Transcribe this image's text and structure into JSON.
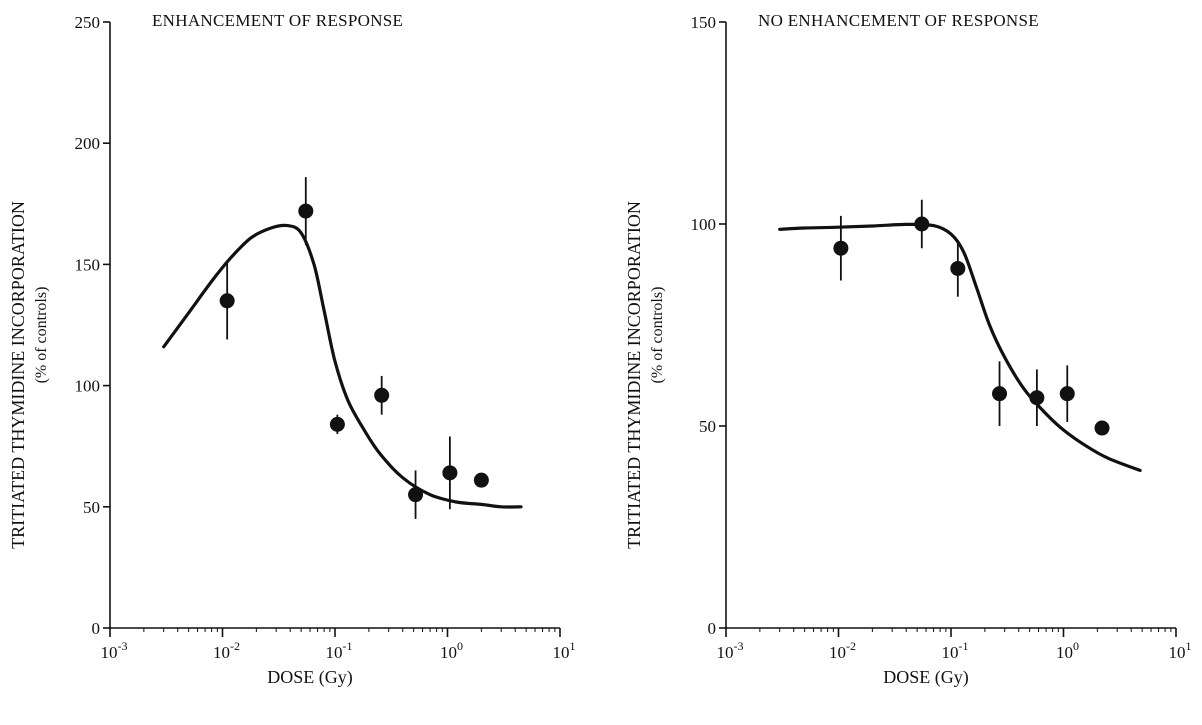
{
  "chart_data": [
    {
      "type": "scatter",
      "title": "ENHANCEMENT OF RESPONSE",
      "xlabel": "DOSE (Gy)",
      "ylabel": "TRITIATED THYMIDINE INCORPORATION",
      "ylabel_sub": "(% of controls)",
      "xscale": "log",
      "xlim": [
        0.001,
        10
      ],
      "ylim": [
        0,
        250
      ],
      "xticks": [
        {
          "base": "10",
          "exp": "-3",
          "value": 0.001
        },
        {
          "base": "10",
          "exp": "-2",
          "value": 0.01
        },
        {
          "base": "10",
          "exp": "-1",
          "value": 0.1
        },
        {
          "base": "10",
          "exp": "0",
          "value": 1
        },
        {
          "base": "10",
          "exp": "1",
          "value": 10
        }
      ],
      "yticks": [
        0,
        50,
        100,
        150,
        200,
        250
      ],
      "grid": false,
      "points": [
        {
          "x": 0.011,
          "y": 135,
          "err": 16
        },
        {
          "x": 0.055,
          "y": 172,
          "err": 14
        },
        {
          "x": 0.105,
          "y": 84,
          "err": 4
        },
        {
          "x": 0.26,
          "y": 96,
          "err": 8
        },
        {
          "x": 0.52,
          "y": 55,
          "err": 10
        },
        {
          "x": 1.05,
          "y": 64,
          "err": 15
        },
        {
          "x": 2.0,
          "y": 61,
          "err": 0
        }
      ],
      "curve": [
        {
          "x": 0.003,
          "y": 116
        },
        {
          "x": 0.005,
          "y": 130
        },
        {
          "x": 0.008,
          "y": 143
        },
        {
          "x": 0.012,
          "y": 153
        },
        {
          "x": 0.018,
          "y": 161
        },
        {
          "x": 0.027,
          "y": 165
        },
        {
          "x": 0.038,
          "y": 166
        },
        {
          "x": 0.05,
          "y": 163
        },
        {
          "x": 0.065,
          "y": 150
        },
        {
          "x": 0.08,
          "y": 131
        },
        {
          "x": 0.1,
          "y": 110
        },
        {
          "x": 0.13,
          "y": 94
        },
        {
          "x": 0.18,
          "y": 82
        },
        {
          "x": 0.25,
          "y": 72
        },
        {
          "x": 0.4,
          "y": 62
        },
        {
          "x": 0.7,
          "y": 55
        },
        {
          "x": 1.2,
          "y": 52
        },
        {
          "x": 2.0,
          "y": 51
        },
        {
          "x": 3.0,
          "y": 50
        },
        {
          "x": 4.5,
          "y": 50
        }
      ]
    },
    {
      "type": "scatter",
      "title": "NO ENHANCEMENT OF RESPONSE",
      "xlabel": "DOSE (Gy)",
      "ylabel": "TRITIATED THYMIDINE INCORPORATION",
      "ylabel_sub": "(% of controls)",
      "xscale": "log",
      "xlim": [
        0.001,
        10
      ],
      "ylim": [
        0,
        150
      ],
      "xticks": [
        {
          "base": "10",
          "exp": "-3",
          "value": 0.001
        },
        {
          "base": "10",
          "exp": "-2",
          "value": 0.01
        },
        {
          "base": "10",
          "exp": "-1",
          "value": 0.1
        },
        {
          "base": "10",
          "exp": "0",
          "value": 1
        },
        {
          "base": "10",
          "exp": "1",
          "value": 10
        }
      ],
      "yticks": [
        0,
        50,
        100,
        150
      ],
      "grid": false,
      "points": [
        {
          "x": 0.0105,
          "y": 94,
          "err": 8
        },
        {
          "x": 0.055,
          "y": 100,
          "err": 6
        },
        {
          "x": 0.115,
          "y": 89,
          "err": 7
        },
        {
          "x": 0.27,
          "y": 58,
          "err": 8
        },
        {
          "x": 0.58,
          "y": 57,
          "err": 7
        },
        {
          "x": 1.08,
          "y": 58,
          "err": 7
        },
        {
          "x": 2.2,
          "y": 49.5,
          "err": 0
        }
      ],
      "curve": [
        {
          "x": 0.003,
          "y": 98.7
        },
        {
          "x": 0.005,
          "y": 99
        },
        {
          "x": 0.01,
          "y": 99.2
        },
        {
          "x": 0.02,
          "y": 99.5
        },
        {
          "x": 0.04,
          "y": 99.9
        },
        {
          "x": 0.07,
          "y": 99.6
        },
        {
          "x": 0.1,
          "y": 97.5
        },
        {
          "x": 0.13,
          "y": 93
        },
        {
          "x": 0.17,
          "y": 84
        },
        {
          "x": 0.22,
          "y": 75
        },
        {
          "x": 0.3,
          "y": 67
        },
        {
          "x": 0.45,
          "y": 59
        },
        {
          "x": 0.7,
          "y": 53
        },
        {
          "x": 1.0,
          "y": 49
        },
        {
          "x": 1.6,
          "y": 45
        },
        {
          "x": 2.5,
          "y": 42
        },
        {
          "x": 4.8,
          "y": 39
        }
      ]
    }
  ]
}
